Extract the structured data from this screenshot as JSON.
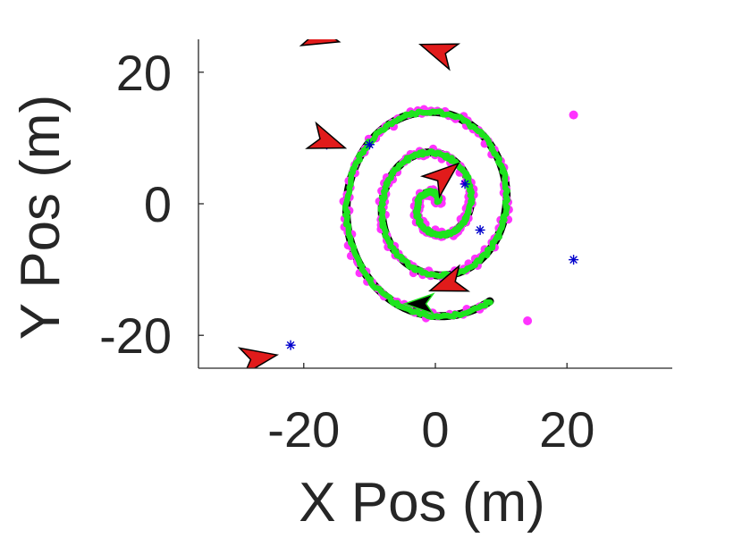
{
  "chart_data": {
    "type": "scatter",
    "title": "",
    "xlabel": "X Pos (m)",
    "ylabel": "Y Pos (m)",
    "xlim": [
      -36,
      36
    ],
    "ylim": [
      -25,
      25
    ],
    "xticks": [
      -20,
      0,
      20
    ],
    "yticks": [
      -20,
      0,
      20
    ],
    "xtick_labels": [
      "-20",
      "0",
      "20"
    ],
    "ytick_labels": [
      "-20",
      "0",
      "20"
    ],
    "grid": false,
    "box": false,
    "spiral": {
      "center": [
        0,
        0
      ],
      "turns": 2.75,
      "start_radius": 0.5,
      "radius_growth_per_turn": 5.4
    },
    "sensors": [
      {
        "x": 21,
        "y": 13.5,
        "kind": "dot"
      },
      {
        "x": 14,
        "y": -17.8,
        "kind": "dot"
      },
      {
        "x": 0.8,
        "y": 22.8,
        "kind": "star"
      },
      {
        "x": 4.5,
        "y": 3,
        "kind": "star"
      },
      {
        "x": 6.8,
        "y": -4,
        "kind": "star"
      },
      {
        "x": 21,
        "y": -8.5,
        "kind": "star"
      },
      {
        "x": -22,
        "y": -21.5,
        "kind": "star"
      },
      {
        "x": -10,
        "y": 9,
        "kind": "star"
      },
      {
        "x": -16.5,
        "y": 9,
        "kind": "star"
      },
      {
        "x": 1,
        "y": 4,
        "kind": "star"
      }
    ],
    "vehicles": [
      {
        "x": -17.5,
        "y": 25.4,
        "heading_deg": -15
      },
      {
        "x": 0.5,
        "y": 23.2,
        "heading_deg": 160
      },
      {
        "x": -16.5,
        "y": 9.5,
        "heading_deg": -20
      },
      {
        "x": 1.2,
        "y": 4.2,
        "heading_deg": 40
      },
      {
        "x": 2.0,
        "y": -12.2,
        "heading_deg": 200
      },
      {
        "x": -27,
        "y": -23.5,
        "heading_deg": 10
      }
    ],
    "path_end_arrow": {
      "x": -2.5,
      "y": -15.2,
      "heading_deg": 180
    },
    "colors": {
      "truth": "#000000",
      "estimate": "#1ee41e",
      "measurements": "#ff33ff",
      "stars": "#0000cc",
      "vehicle_fill": "#e11b1b",
      "vehicle_stroke": "#000000"
    }
  }
}
